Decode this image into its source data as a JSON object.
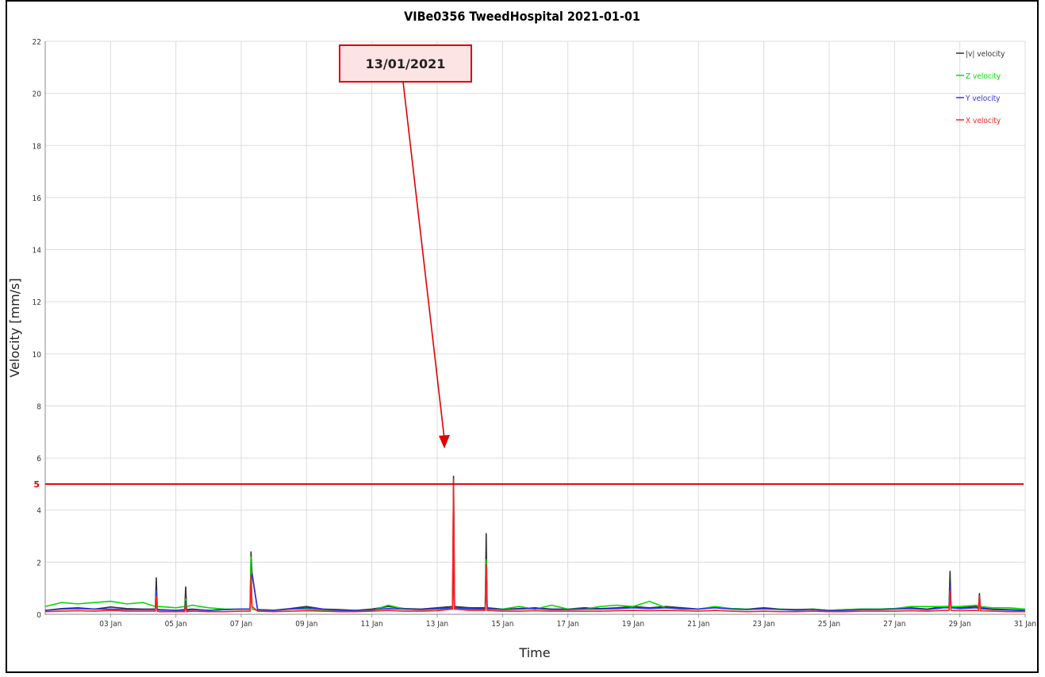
{
  "chart_data": {
    "type": "line",
    "title": "VIBe0356 TweedHospital 2021-01-01",
    "x_label": "Time",
    "y_label": "Velocity [mm/s]",
    "annotation": "13/01/2021",
    "legend": "top-right",
    "grid": true,
    "xlim": [
      1,
      31
    ],
    "ylim": [
      0,
      22
    ],
    "yticks": [
      0,
      2,
      4,
      6,
      8,
      10,
      12,
      14,
      16,
      18,
      20,
      22
    ],
    "xticks": [
      {
        "value": 3,
        "label": "03 Jan"
      },
      {
        "value": 5,
        "label": "05 Jan"
      },
      {
        "value": 7,
        "label": "07 Jan"
      },
      {
        "value": 9,
        "label": "09 Jan"
      },
      {
        "value": 11,
        "label": "11 Jan"
      },
      {
        "value": 13,
        "label": "13 Jan"
      },
      {
        "value": 15,
        "label": "15 Jan"
      },
      {
        "value": 17,
        "label": "17 Jan"
      },
      {
        "value": 19,
        "label": "19 Jan"
      },
      {
        "value": 21,
        "label": "21 Jan"
      },
      {
        "value": 23,
        "label": "23 Jan"
      },
      {
        "value": 25,
        "label": "25 Jan"
      },
      {
        "value": 27,
        "label": "27 Jan"
      },
      {
        "value": 29,
        "label": "29 Jan"
      },
      {
        "value": 31,
        "label": "31 Jan"
      }
    ],
    "threshold": {
      "value": 5,
      "color": "#e00000"
    },
    "x": [
      1,
      1.5,
      2,
      2.5,
      3,
      3.5,
      4,
      4.37,
      4.4,
      4.43,
      4.5,
      5,
      5.27,
      5.3,
      5.33,
      5.5,
      6,
      6.5,
      7,
      7.27,
      7.3,
      7.33,
      7.5,
      8,
      8.5,
      9,
      9.5,
      10,
      10.5,
      11,
      11.5,
      12,
      12.5,
      13,
      13.47,
      13.5,
      13.53,
      14,
      14.47,
      14.5,
      14.53,
      15,
      15.5,
      16,
      16.5,
      17,
      17.5,
      18,
      18.5,
      19,
      19.5,
      20,
      20.5,
      21,
      21.5,
      22,
      22.5,
      23,
      23.5,
      24,
      24.5,
      25,
      25.5,
      26,
      26.5,
      27,
      27.5,
      28,
      28.5,
      28.67,
      28.7,
      28.73,
      29,
      29.5,
      29.57,
      29.6,
      29.63,
      30,
      30.5,
      31
    ],
    "series": [
      {
        "name": "|v| velocity",
        "color": "#333333",
        "values": [
          0.15,
          0.22,
          0.25,
          0.2,
          0.28,
          0.22,
          0.2,
          0.2,
          1.4,
          0.2,
          0.18,
          0.15,
          0.18,
          1.05,
          0.18,
          0.2,
          0.15,
          0.18,
          0.2,
          0.2,
          2.4,
          1.6,
          0.18,
          0.16,
          0.22,
          0.3,
          0.2,
          0.18,
          0.15,
          0.2,
          0.3,
          0.22,
          0.2,
          0.25,
          0.3,
          5.3,
          0.3,
          0.25,
          0.25,
          3.1,
          0.25,
          0.2,
          0.22,
          0.25,
          0.2,
          0.2,
          0.25,
          0.22,
          0.25,
          0.3,
          0.25,
          0.3,
          0.25,
          0.2,
          0.28,
          0.22,
          0.2,
          0.25,
          0.2,
          0.18,
          0.2,
          0.15,
          0.18,
          0.2,
          0.2,
          0.22,
          0.25,
          0.2,
          0.3,
          0.3,
          1.65,
          0.3,
          0.25,
          0.3,
          0.25,
          0.8,
          0.25,
          0.2,
          0.18,
          0.15
        ]
      },
      {
        "name": "Z velocity",
        "color": "#00dd00",
        "values": [
          0.3,
          0.45,
          0.4,
          0.45,
          0.5,
          0.4,
          0.45,
          0.3,
          0.9,
          0.3,
          0.3,
          0.25,
          0.3,
          0.6,
          0.3,
          0.35,
          0.25,
          0.2,
          0.2,
          0.2,
          2.2,
          0.2,
          0.15,
          0.15,
          0.2,
          0.2,
          0.15,
          0.15,
          0.12,
          0.15,
          0.35,
          0.2,
          0.18,
          0.2,
          0.2,
          2.0,
          0.2,
          0.2,
          0.2,
          2.1,
          0.2,
          0.2,
          0.3,
          0.2,
          0.35,
          0.2,
          0.2,
          0.3,
          0.35,
          0.3,
          0.5,
          0.25,
          0.2,
          0.2,
          0.3,
          0.22,
          0.2,
          0.2,
          0.2,
          0.15,
          0.2,
          0.15,
          0.18,
          0.2,
          0.2,
          0.22,
          0.3,
          0.3,
          0.3,
          0.3,
          0.8,
          0.3,
          0.3,
          0.35,
          0.3,
          0.5,
          0.3,
          0.25,
          0.25,
          0.2
        ]
      },
      {
        "name": "Y velocity",
        "color": "#3030ee",
        "values": [
          0.15,
          0.2,
          0.22,
          0.2,
          0.2,
          0.18,
          0.18,
          0.18,
          0.9,
          0.18,
          0.16,
          0.15,
          0.15,
          0.5,
          0.15,
          0.18,
          0.15,
          0.18,
          0.2,
          0.2,
          1.2,
          1.55,
          0.18,
          0.15,
          0.2,
          0.25,
          0.2,
          0.15,
          0.15,
          0.18,
          0.22,
          0.2,
          0.18,
          0.22,
          0.25,
          3.0,
          0.25,
          0.22,
          0.2,
          1.0,
          0.22,
          0.18,
          0.2,
          0.22,
          0.18,
          0.18,
          0.2,
          0.2,
          0.22,
          0.25,
          0.22,
          0.25,
          0.22,
          0.2,
          0.25,
          0.2,
          0.18,
          0.22,
          0.18,
          0.16,
          0.18,
          0.14,
          0.15,
          0.18,
          0.18,
          0.2,
          0.22,
          0.18,
          0.25,
          0.25,
          1.1,
          0.25,
          0.22,
          0.25,
          0.22,
          0.6,
          0.22,
          0.18,
          0.16,
          0.14
        ]
      },
      {
        "name": "X velocity",
        "color": "#ff2020",
        "values": [
          0.1,
          0.12,
          0.14,
          0.12,
          0.15,
          0.12,
          0.12,
          0.12,
          0.7,
          0.12,
          0.1,
          0.1,
          0.1,
          0.4,
          0.1,
          0.12,
          0.1,
          0.1,
          0.12,
          0.12,
          1.5,
          0.3,
          0.12,
          0.1,
          0.12,
          0.14,
          0.12,
          0.1,
          0.1,
          0.12,
          0.15,
          0.12,
          0.12,
          0.14,
          0.2,
          5.2,
          0.2,
          0.15,
          0.15,
          1.9,
          0.15,
          0.12,
          0.12,
          0.14,
          0.12,
          0.12,
          0.12,
          0.12,
          0.14,
          0.15,
          0.14,
          0.15,
          0.14,
          0.12,
          0.15,
          0.12,
          0.1,
          0.12,
          0.1,
          0.1,
          0.12,
          0.1,
          0.1,
          0.12,
          0.12,
          0.12,
          0.14,
          0.12,
          0.15,
          0.15,
          0.9,
          0.15,
          0.14,
          0.15,
          0.14,
          0.7,
          0.14,
          0.12,
          0.1,
          0.1
        ]
      }
    ]
  }
}
